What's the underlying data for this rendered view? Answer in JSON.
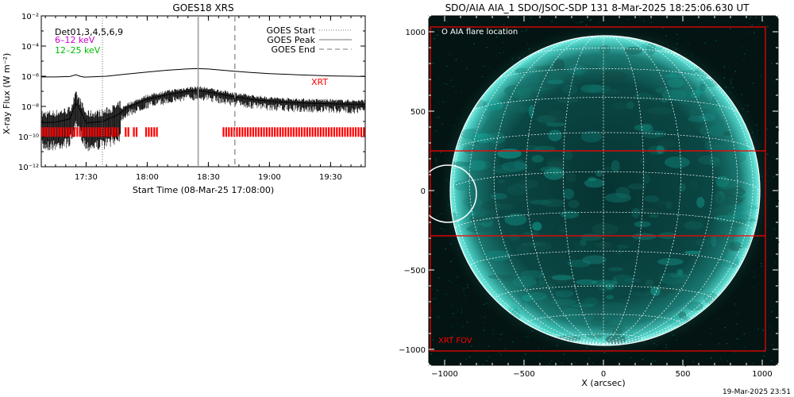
{
  "footer_timestamp": "19-Mar-2025 23:51",
  "chart_data": [
    {
      "type": "line",
      "title": "GOES18 XRS",
      "xlabel": "Start Time (08-Mar-25 17:08:00)",
      "ylabel": "X-ray Flux (W m⁻²)",
      "yscale": "log",
      "ylim": [
        1e-12,
        0.01
      ],
      "xlim": [
        "17:08",
        "19:47"
      ],
      "x_ticks": [
        "17:30",
        "18:00",
        "18:30",
        "19:00",
        "19:30"
      ],
      "y_ticks": [
        "10⁻¹²",
        "10⁻¹⁰",
        "10⁻⁸",
        "10⁻⁶",
        "10⁻⁴",
        "10⁻²"
      ],
      "legend_top_left": [
        {
          "text": "Det01,3,4,5,6,9",
          "color": "#000000"
        },
        {
          "text": "6–12 keV",
          "color": "#cc00cc"
        },
        {
          "text": "12–25 keV",
          "color": "#00bb00"
        }
      ],
      "legend_top_right": [
        {
          "text": "GOES Start",
          "style": "dotted"
        },
        {
          "text": "GOES Peak",
          "style": "solid"
        },
        {
          "text": "GOES End",
          "style": "dashed"
        }
      ],
      "xrt_label": {
        "text": "XRT",
        "color": "#ff0000"
      },
      "markers": {
        "goes_start": "17:38",
        "goes_peak": "18:25",
        "goes_end": "18:43"
      },
      "series": [
        {
          "id": "long",
          "x": [
            "17:08",
            "17:15",
            "17:22",
            "17:25",
            "17:27",
            "17:29",
            "17:32",
            "17:40",
            "17:50",
            "18:00",
            "18:10",
            "18:20",
            "18:25",
            "18:30",
            "18:40",
            "18:50",
            "19:00",
            "19:10",
            "19:20",
            "19:30",
            "19:40",
            "19:47"
          ],
          "y": [
            9e-07,
            9e-07,
            9.5e-07,
            1.25e-06,
            1e-06,
            8.8e-07,
            9e-07,
            1e-06,
            1.4e-06,
            1.9e-06,
            2.5e-06,
            3.1e-06,
            3.2e-06,
            3e-06,
            2.3e-06,
            1.8e-06,
            1.5e-06,
            1.3e-06,
            1.15e-06,
            1.05e-06,
            1e-06,
            9.5e-07
          ]
        },
        {
          "id": "short",
          "x": [
            "17:08",
            "17:15",
            "17:22",
            "17:25",
            "17:27",
            "17:30",
            "17:38",
            "17:45",
            "17:50",
            "18:00",
            "18:10",
            "18:20",
            "18:25",
            "18:30",
            "18:40",
            "18:50",
            "19:00",
            "19:10",
            "19:20",
            "19:30",
            "19:40",
            "19:47"
          ],
          "y": [
            8e-10,
            9e-10,
            1.5e-09,
            1.6e-08,
            6e-09,
            8e-10,
            1e-09,
            2.5e-09,
            8e-09,
            3e-08,
            6e-08,
            1e-07,
            1.1e-07,
            9e-08,
            5e-08,
            3e-08,
            2.2e-08,
            1.8e-08,
            1.6e-08,
            1.5e-08,
            1.4e-08,
            1.4e-08
          ]
        }
      ],
      "xrt_coverage": [
        [
          "17:08",
          "17:46"
        ],
        [
          "17:49",
          "17:51"
        ],
        [
          "17:53",
          "17:55"
        ],
        [
          "17:59",
          "18:05"
        ],
        [
          "18:37",
          "19:47"
        ]
      ],
      "xrt_y": 2e-10
    },
    {
      "type": "image",
      "title": "SDO/AIA AIA_1 SDO/JSOC-SDP 131  8-Mar-2025 18:25:06.630 UT",
      "xlabel": "X (arcsec)",
      "ylabel": "",
      "xlim": [
        -1100,
        1100
      ],
      "ylim": [
        -1100,
        1100
      ],
      "x_ticks": [
        "−1000",
        "−500",
        "0",
        "500",
        "1000"
      ],
      "y_ticks": [
        "−1000",
        "−500",
        "0",
        "500",
        "1000"
      ],
      "legend": "O AIA flare location",
      "fov_label": {
        "text": "XRT FOV",
        "color": "#ff0000"
      },
      "solar_radius": 975,
      "flare_location": [
        -980,
        -20
      ],
      "xrt_fov": {
        "x": [
          -1100,
          1020
        ],
        "y": [
          -1010,
          1030
        ]
      },
      "fov_lines_y": [
        250,
        -285
      ]
    }
  ]
}
